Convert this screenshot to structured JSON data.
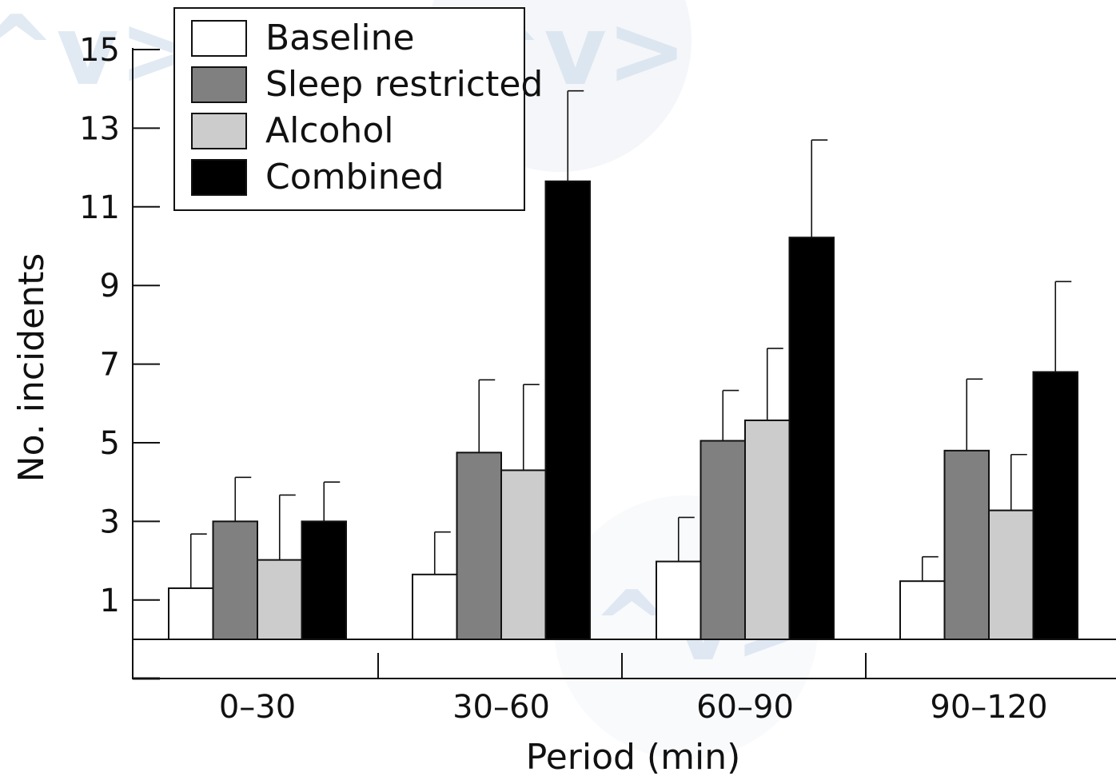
{
  "chart_data": {
    "type": "bar",
    "title": "",
    "xlabel": "Period (min)",
    "ylabel": "No. incidents",
    "categories": [
      "0–30",
      "30–60",
      "60–90",
      "90–120"
    ],
    "yticks": [
      1,
      3,
      5,
      7,
      9,
      11,
      13,
      15
    ],
    "ylim": [
      0,
      15
    ],
    "grid": false,
    "legend_position": "top-left",
    "series": [
      {
        "name": "Baseline",
        "color": "#ffffff",
        "values": [
          1.3,
          1.65,
          1.98,
          1.48
        ],
        "errors": [
          1.38,
          1.08,
          1.12,
          0.62
        ]
      },
      {
        "name": "Sleep restricted",
        "color": "#808080",
        "values": [
          3.0,
          4.75,
          5.05,
          4.8
        ],
        "errors": [
          1.12,
          1.85,
          1.28,
          1.82
        ]
      },
      {
        "name": "Alcohol",
        "color": "#cccccc",
        "values": [
          2.02,
          4.3,
          5.57,
          3.28
        ],
        "errors": [
          1.65,
          2.18,
          1.83,
          1.42
        ]
      },
      {
        "name": "Combined",
        "color": "#000000",
        "values": [
          3.0,
          11.65,
          10.22,
          6.8
        ],
        "errors": [
          1.0,
          2.3,
          2.48,
          2.3
        ]
      }
    ]
  },
  "watermark": {
    "text": "^v>",
    "color": "#c9d9ea"
  }
}
